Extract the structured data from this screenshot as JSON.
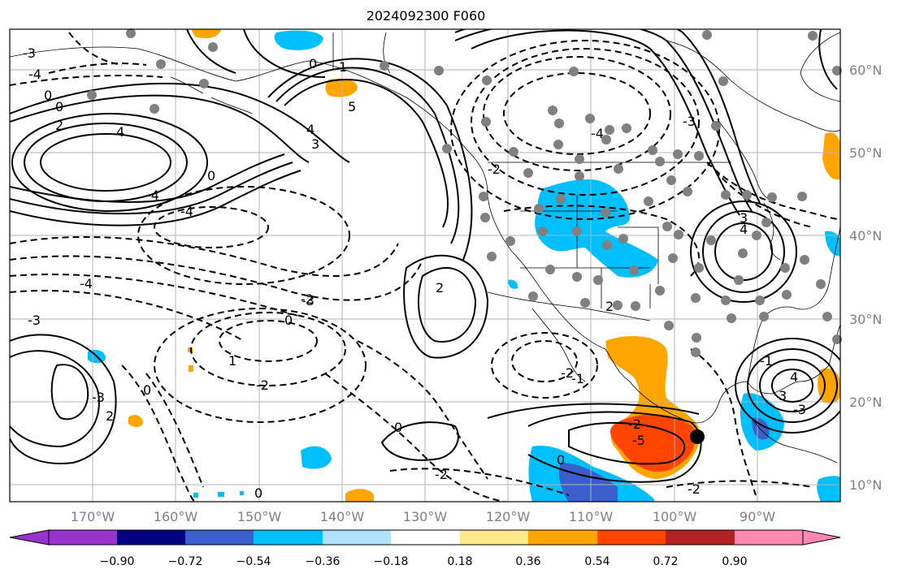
{
  "title": "2024092300 F060",
  "lat_labels": [
    "60°N",
    "50°N",
    "40°N",
    "30°N",
    "20°N",
    "10°N"
  ],
  "lon_labels": [
    "170°W",
    "160°W",
    "150°W",
    "140°W",
    "130°W",
    "120°W",
    "110°W",
    "100°W",
    "90°W"
  ],
  "colorbar": {
    "tick_labels": [
      "−0.90",
      "−0.72",
      "−0.54",
      "−0.36",
      "−0.18",
      "0.18",
      "0.36",
      "0.54",
      "0.72",
      "0.90"
    ],
    "colors": [
      "#9a33cc",
      "#000080",
      "#3a5fcd",
      "#00bfff",
      "#b0e2ff",
      "#ffffff",
      "#ffe98a",
      "#ffa500",
      "#ff4500",
      "#b22222",
      "#ff88b0"
    ]
  },
  "contour_labels": [
    "0",
    "2",
    "0",
    "5",
    "4",
    "-4",
    "4",
    "0",
    "0",
    "-3",
    "3",
    "2",
    "-4",
    "4",
    "-4",
    "-4",
    "-4",
    "-3",
    "-3",
    "1",
    "-2",
    "0",
    "-3",
    "0",
    "2",
    "3",
    "-5",
    "-2",
    "-3",
    "-2",
    "-1",
    "-1",
    "-2",
    "0",
    "-2",
    "0",
    "2",
    "3",
    "-3",
    "-2",
    "0",
    "1",
    "4",
    "-2"
  ],
  "station_marker": "black-dot"
}
